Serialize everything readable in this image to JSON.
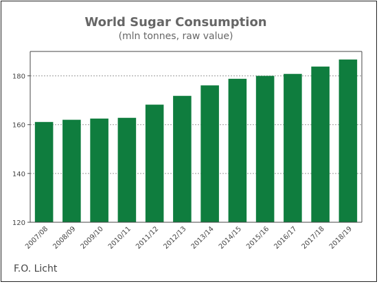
{
  "chart_data": {
    "type": "bar",
    "title": "World Sugar Consumption",
    "subtitle": "(mln tonnes, raw value)",
    "categories": [
      "2007/08",
      "2008/09",
      "2009/10",
      "2010/11",
      "2011/12",
      "2012/13",
      "2013/14",
      "2014/15",
      "2015/16",
      "2016/17",
      "2017/18",
      "2018/19"
    ],
    "values": [
      161.1,
      162.0,
      162.5,
      162.8,
      168.2,
      171.8,
      176.1,
      178.8,
      180.0,
      180.8,
      183.8,
      186.7
    ],
    "ylim": [
      120,
      190
    ],
    "yticks": [
      120,
      140,
      160,
      180
    ],
    "grid": true,
    "bar_color": "#0f7d3e"
  },
  "source": "F.O. Licht"
}
